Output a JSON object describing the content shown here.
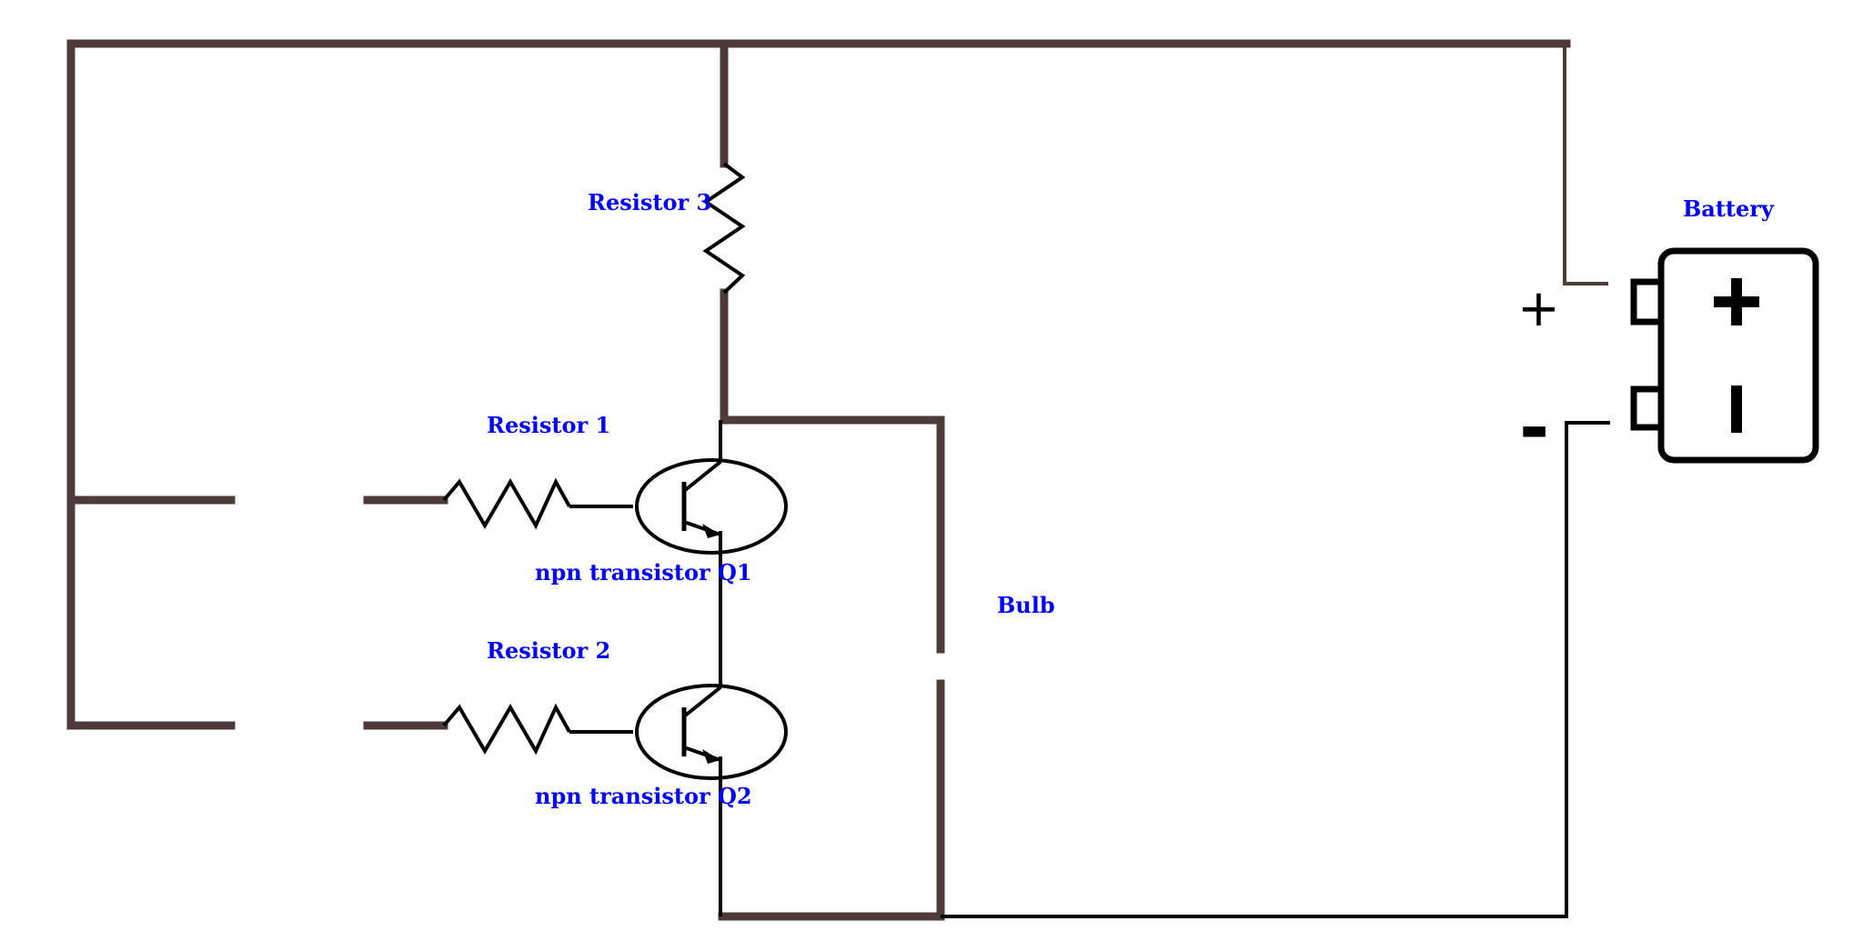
{
  "diagram": {
    "labels": {
      "resistor_3": "Resistor 3",
      "resistor_1": "Resistor 1",
      "resistor_2": "Resistor 2",
      "transistor_q1": "npn transistor Q1",
      "transistor_q2": "npn transistor Q2",
      "bulb": "Bulb",
      "battery": "Battery",
      "plus_terminal": "+",
      "minus_terminal": "-"
    },
    "colors": {
      "wire": "#4e3b39",
      "lead": "#000000",
      "label": "#0000ff"
    }
  }
}
